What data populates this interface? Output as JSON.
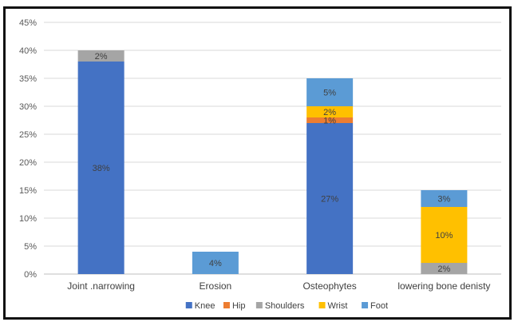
{
  "chart_data": {
    "type": "bar",
    "stacked": true,
    "categories": [
      "Joint .narrowing",
      "Erosion",
      "Osteophytes",
      "lowering bone denisty"
    ],
    "series": [
      {
        "name": "Knee",
        "color": "#4472C4",
        "values": [
          38,
          0,
          27,
          0
        ],
        "labels": [
          "38%",
          "",
          "27%",
          ""
        ]
      },
      {
        "name": "Hip",
        "color": "#ED7D31",
        "values": [
          0,
          0,
          1,
          0
        ],
        "labels": [
          "",
          "",
          "1%",
          ""
        ]
      },
      {
        "name": "Shoulders",
        "color": "#A5A5A5",
        "values": [
          2,
          0,
          0,
          2
        ],
        "labels": [
          "2%",
          "",
          "",
          "2%"
        ]
      },
      {
        "name": "Wrist",
        "color": "#FFC000",
        "values": [
          0,
          0,
          2,
          10
        ],
        "labels": [
          "",
          "",
          "2%",
          "10%"
        ]
      },
      {
        "name": "Foot",
        "color": "#5B9BD5",
        "values": [
          0,
          4,
          5,
          3
        ],
        "labels": [
          "",
          "4%",
          "5%",
          "3%"
        ]
      }
    ],
    "ylim": [
      0,
      45
    ],
    "yticks": [
      "0%",
      "5%",
      "10%",
      "15%",
      "20%",
      "25%",
      "30%",
      "35%",
      "40%",
      "45%"
    ],
    "grid": true,
    "legend": "bottom"
  }
}
